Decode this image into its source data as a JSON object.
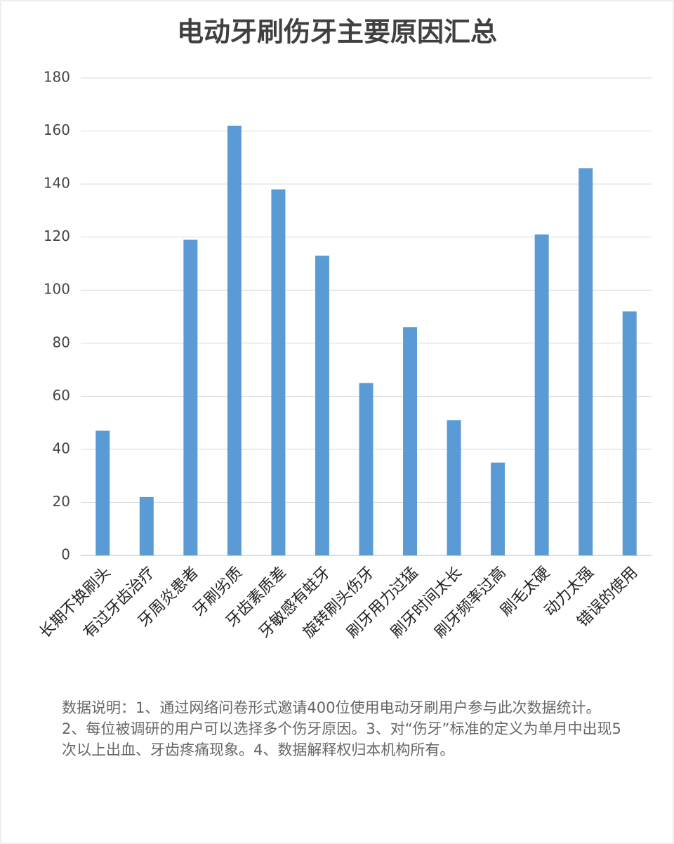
{
  "chart_data": {
    "type": "bar",
    "title": "电动牙刷伤牙主要原因汇总",
    "categories": [
      "长期不换刷头",
      "有过牙齿治疗",
      "牙周炎患者",
      "牙刷劣质",
      "牙齿素质差",
      "牙敏感有蛀牙",
      "旋转刷头伤牙",
      "刷牙用力过猛",
      "刷牙时间太长",
      "刷牙频率过高",
      "刷毛太硬",
      "动力太强",
      "错误的使用"
    ],
    "values": [
      47,
      22,
      119,
      162,
      138,
      113,
      65,
      86,
      51,
      35,
      121,
      146,
      92
    ],
    "color": "#5b9bd5",
    "ylim": [
      0,
      180
    ],
    "yticks": [
      0,
      20,
      40,
      60,
      80,
      100,
      120,
      140,
      160,
      180
    ],
    "grid": true,
    "note": "数据说明：1、通过网络问卷形式邀请400位使用电动牙刷用户参与此次数据统计。2、每位被调研的用户可以选择多个伤牙原因。3、对“伤牙”标准的定义为单月中出现5次以上出血、牙齿疼痛现象。4、数据解释权归本机构所有。"
  }
}
